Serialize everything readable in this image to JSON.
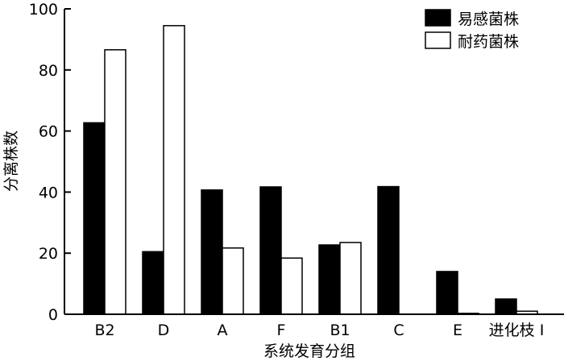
{
  "chart_data": {
    "type": "bar",
    "title": "",
    "xlabel": "系统发育分组",
    "ylabel": "分离株数",
    "ylim": [
      0,
      100
    ],
    "yticks": [
      "0",
      "20",
      "40",
      "60",
      "80",
      "100"
    ],
    "categories": [
      "B2",
      "D",
      "A",
      "F",
      "B1",
      "C",
      "E",
      "进化枝 Ⅰ"
    ],
    "series": [
      {
        "name": "易感菌株",
        "values": [
          62.7,
          20.5,
          40.7,
          41.7,
          22.7,
          41.8,
          14.0,
          5.0
        ],
        "color": "#000000"
      },
      {
        "name": "耐药菌株",
        "values": [
          86.6,
          94.5,
          21.7,
          18.4,
          23.5,
          0,
          0.3,
          1.0
        ],
        "color": "#ffffff"
      }
    ],
    "grid": false,
    "legend": "top-right"
  }
}
